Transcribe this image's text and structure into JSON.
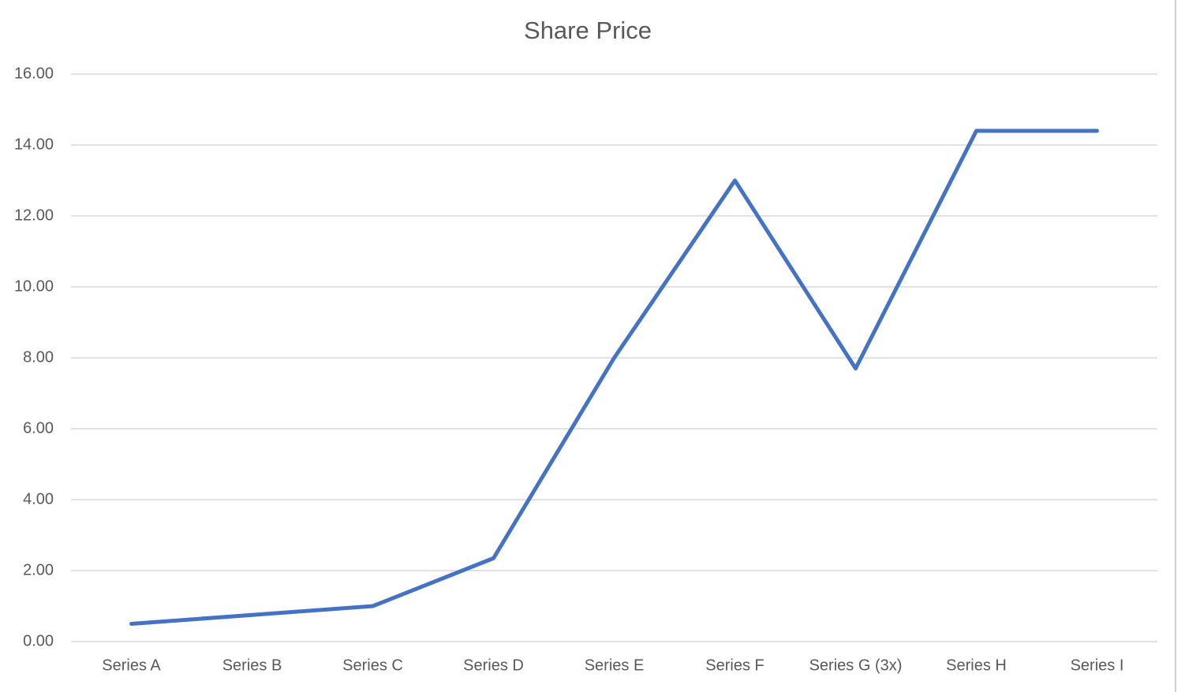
{
  "chart_data": {
    "type": "line",
    "title": "Share Price",
    "categories": [
      "Series A",
      "Series B",
      "Series C",
      "Series D",
      "Series E",
      "Series F",
      "Series G (3x)",
      "Series H",
      "Series I"
    ],
    "series": [
      {
        "name": "Share Price",
        "color": "#4472c4",
        "values": [
          0.5,
          0.75,
          1.0,
          2.35,
          8.0,
          13.0,
          7.7,
          14.4,
          14.4
        ]
      }
    ],
    "ylim": [
      0,
      16
    ],
    "yticks": [
      {
        "value": 0,
        "label": "0.00"
      },
      {
        "value": 2,
        "label": "2.00"
      },
      {
        "value": 4,
        "label": "4.00"
      },
      {
        "value": 6,
        "label": "6.00"
      },
      {
        "value": 8,
        "label": "8.00"
      },
      {
        "value": 10,
        "label": "10.00"
      },
      {
        "value": 12,
        "label": "12.00"
      },
      {
        "value": 14,
        "label": "14.00"
      },
      {
        "value": 16,
        "label": "16.00"
      }
    ],
    "grid": true
  }
}
